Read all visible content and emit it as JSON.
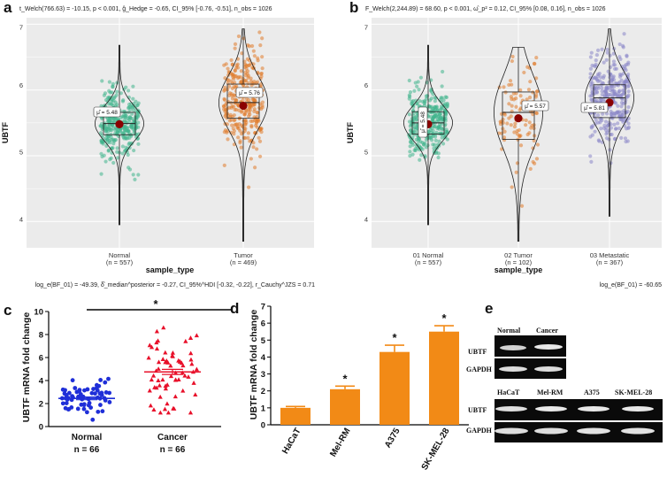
{
  "colors": {
    "normal": "#3fb58c",
    "tumor": "#e07b2c",
    "metastatic": "#8a87c8",
    "mean_dot": "#8b0000",
    "c_normal": "#1f2fd8",
    "c_cancer": "#e8102a",
    "c_mean_cancer": "#e8102a",
    "bar": "#f28a16"
  },
  "panels": {
    "a": {
      "letter": "a",
      "stat": "t_Welch(766.63) = -10.15, p < 0.001, ĝ_Hedge = -0.65, CI_95% [-0.76, -0.51], n_obs = 1026",
      "bayes": "log_e(BF_01) = -49.39, δ̂_median^posterior = -0.27, CI_95%^HDI [-0.32, -0.22], r_Cauchy^JZS = 0.71",
      "xtitle": "sample_type",
      "ytitle": "UBTF",
      "groups": [
        {
          "name": "Normal",
          "n": "(n = 557)",
          "mu": "μ̂ = 5.48"
        },
        {
          "name": "Tumor",
          "n": "(n = 469)",
          "mu": "μ̂ = 5.76"
        }
      ]
    },
    "b": {
      "letter": "b",
      "stat": "F_Welch(2,244.89) = 68.60, p < 0.001, ω̂_p² = 0.12, CI_95% [0.08, 0.16], n_obs = 1026",
      "bayes": "log_e(BF_01) = -60.65",
      "xtitle": "sample_type",
      "ytitle": "UBTF",
      "groups": [
        {
          "name": "01 Normal",
          "n": "(n = 557)",
          "mu": "μ̂ = 5.48"
        },
        {
          "name": "02 Tumor",
          "n": "(n = 102)",
          "mu": "μ̂ = 5.57"
        },
        {
          "name": "03 Metastatic",
          "n": "(n = 367)",
          "mu": "μ̂ = 5.81"
        }
      ]
    },
    "c": {
      "letter": "c",
      "ytitle": "UBTF mRNA fold change",
      "sig": "*",
      "groups": [
        {
          "name": "Normal",
          "n": "n = 66"
        },
        {
          "name": "Cancer",
          "n": "n = 66"
        }
      ]
    },
    "d": {
      "letter": "d",
      "ytitle": "UBTF mRNA fold change",
      "sig": "*"
    },
    "e": {
      "letter": "e",
      "top_cols": [
        "Normal",
        "Cancer"
      ],
      "bottom_cols": [
        "HaCaT",
        "Mel-RM",
        "A375",
        "SK-MEL-28"
      ],
      "row_labels": [
        "UBTF",
        "GAPDH"
      ]
    }
  },
  "chart_data": [
    {
      "id": "a",
      "type": "scatter",
      "title": "",
      "xlabel": "sample_type",
      "ylabel": "UBTF",
      "categories": [
        "Normal",
        "Tumor"
      ],
      "ylim": [
        3.6,
        7.1
      ],
      "yticks": [
        4,
        5,
        6,
        7
      ],
      "series": [
        {
          "name": "Normal",
          "mean": 5.48,
          "q1": 5.32,
          "median": 5.49,
          "q3": 5.66,
          "min": 3.95,
          "max": 6.68,
          "n": 557
        },
        {
          "name": "Tumor",
          "mean": 5.76,
          "q1": 5.57,
          "median": 5.81,
          "q3": 6.09,
          "min": 3.7,
          "max": 6.93,
          "n": 469
        }
      ]
    },
    {
      "id": "b",
      "type": "scatter",
      "title": "",
      "xlabel": "sample_type",
      "ylabel": "UBTF",
      "categories": [
        "01 Normal",
        "02 Tumor",
        "03 Metastatic"
      ],
      "ylim": [
        3.6,
        7.1
      ],
      "yticks": [
        4,
        5,
        6,
        7
      ],
      "series": [
        {
          "name": "01 Normal",
          "mean": 5.48,
          "q1": 5.33,
          "median": 5.5,
          "q3": 5.67,
          "min": 3.95,
          "max": 6.68,
          "n": 557
        },
        {
          "name": "02 Tumor",
          "mean": 5.57,
          "q1": 5.25,
          "median": 5.66,
          "q3": 5.97,
          "min": 3.7,
          "max": 6.65,
          "n": 102
        },
        {
          "name": "03 Metastatic",
          "mean": 5.81,
          "q1": 5.58,
          "median": 5.88,
          "q3": 6.08,
          "min": 4.08,
          "max": 6.93,
          "n": 367
        }
      ]
    },
    {
      "id": "c",
      "type": "scatter",
      "title": "",
      "xlabel": "",
      "ylabel": "UBTF mRNA fold change",
      "categories": [
        "Normal",
        "Cancer"
      ],
      "ylim": [
        0,
        10
      ],
      "yticks": [
        0,
        2,
        4,
        6,
        8,
        10
      ],
      "series": [
        {
          "name": "Normal",
          "mean": 2.45,
          "sem": 0.12,
          "min": 0.4,
          "max": 5.1,
          "n": 66
        },
        {
          "name": "Cancer",
          "mean": 4.75,
          "sem": 0.22,
          "min": 1.2,
          "max": 8.9,
          "n": 66
        }
      ],
      "annotation": "*"
    },
    {
      "id": "d",
      "type": "bar",
      "title": "",
      "xlabel": "",
      "ylabel": "UBTF mRNA fold change",
      "categories": [
        "HaCaT",
        "Mel-RM",
        "A375",
        "SK-MEL-28"
      ],
      "values": [
        1.0,
        2.1,
        4.3,
        5.5
      ],
      "errors": [
        0.08,
        0.18,
        0.4,
        0.35
      ],
      "significant": [
        false,
        true,
        true,
        true
      ],
      "ylim": [
        0,
        7
      ],
      "yticks": [
        0,
        1,
        2,
        3,
        4,
        5,
        6,
        7
      ]
    }
  ]
}
